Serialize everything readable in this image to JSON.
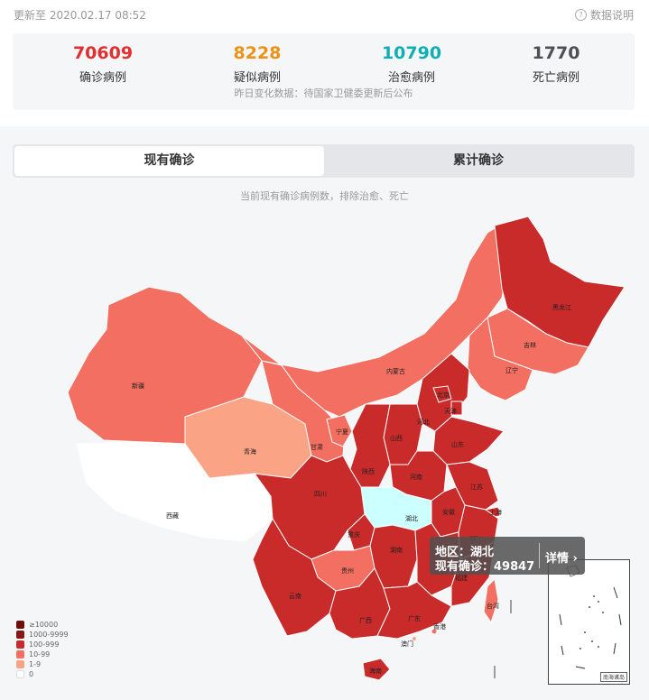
{
  "header": {
    "updated": "更新至 2020.02.17 08:52",
    "explain": "数据说明"
  },
  "stats": [
    {
      "value": "70609",
      "label": "确诊病例",
      "color": "#e02f2f"
    },
    {
      "value": "8228",
      "label": "疑似病例",
      "color": "#ec9217"
    },
    {
      "value": "10790",
      "label": "治愈病例",
      "color": "#10aeb5"
    },
    {
      "value": "1770",
      "label": "死亡病例",
      "color": "#4d5054"
    }
  ],
  "stats_note": "昨日变化数据：待国家卫健委更新后公布",
  "tabs": [
    {
      "label": "现有确诊",
      "active": true
    },
    {
      "label": "累计确诊",
      "active": false
    }
  ],
  "subtitle": "当前现有确诊病例数，排除治愈、死亡",
  "legend": [
    {
      "label": "≥10000",
      "color": "#6e0d0d"
    },
    {
      "label": "1000-9999",
      "color": "#8a1515"
    },
    {
      "label": "100-999",
      "color": "#c92a2a"
    },
    {
      "label": "10-99",
      "color": "#f26f61"
    },
    {
      "label": "1-9",
      "color": "#fba385"
    },
    {
      "label": "0",
      "color": "#ffffff"
    }
  ],
  "tooltip": {
    "region": "地区：湖北",
    "current": "现有确诊：49847",
    "details": "详情"
  },
  "inset_caption": "南海诸岛",
  "provinces": {
    "heilongjiang": "黑龙江",
    "jilin": "吉林",
    "liaoning": "辽宁",
    "neimenggu": "内蒙古",
    "xinjiang": "新疆",
    "xizang": "西藏",
    "qinghai": "青海",
    "gansu": "甘肃",
    "ningxia": "宁夏",
    "shaanxi": "陕西",
    "shanxi": "山西",
    "beijing": "北京",
    "tianjin": "天津",
    "hebei": "河北",
    "shandong": "山东",
    "henan": "河南",
    "jiangsu": "江苏",
    "shanghai": "上海",
    "anhui": "安徽",
    "hubei": "湖北",
    "sichuan": "四川",
    "chongqing": "重庆",
    "yunnan": "云南",
    "guizhou": "贵州",
    "hunan": "湖南",
    "jiangxi": "江西",
    "zhejiang": "浙江",
    "fujian": "福建",
    "guangxi": "广西",
    "guangdong": "广东",
    "hongkong": "香港",
    "macau": "澳门",
    "taiwan": "台湾",
    "hainan": "海南"
  }
}
